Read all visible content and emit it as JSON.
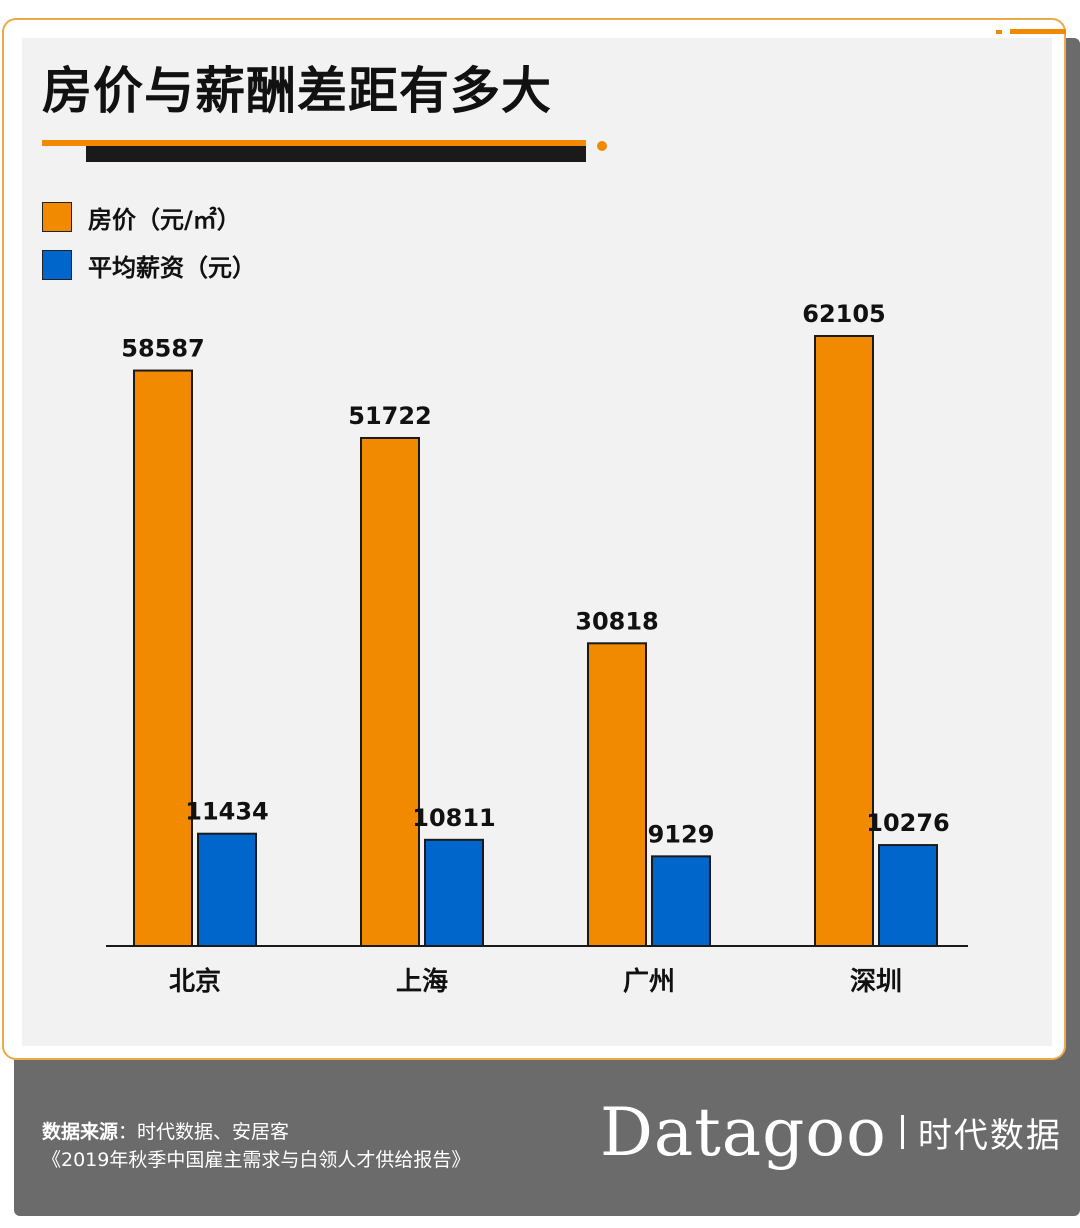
{
  "title": "房价与薪酬差距有多大",
  "legend": [
    {
      "label": "房价（元/㎡）",
      "color": "#f28a00"
    },
    {
      "label": "平均薪资（元）",
      "color": "#0066cc"
    }
  ],
  "chart_data": {
    "type": "bar",
    "title": "房价与薪酬差距有多大",
    "categories": [
      "北京",
      "上海",
      "广州",
      "深圳"
    ],
    "series": [
      {
        "name": "房价（元/㎡）",
        "values": [
          58587,
          51722,
          30818,
          62105
        ],
        "color": "#f28a00"
      },
      {
        "name": "平均薪资（元）",
        "values": [
          11434,
          10811,
          9129,
          10276
        ],
        "color": "#0066cc"
      }
    ],
    "data_labels": [
      [
        "58587",
        "51722",
        "30818",
        "62105"
      ],
      [
        "11434",
        "10811",
        "9129",
        "10276"
      ]
    ],
    "xlabel": "",
    "ylabel": "",
    "grid": false,
    "legend_position": "top-left"
  },
  "footer": {
    "source_label": "数据来源",
    "source_text": "：时代数据、安居客",
    "source_line2": "《2019年秋季中国雇主需求与白领人才供给报告》",
    "brand_logo": "Datagoo",
    "brand_cn": "时代数据"
  }
}
